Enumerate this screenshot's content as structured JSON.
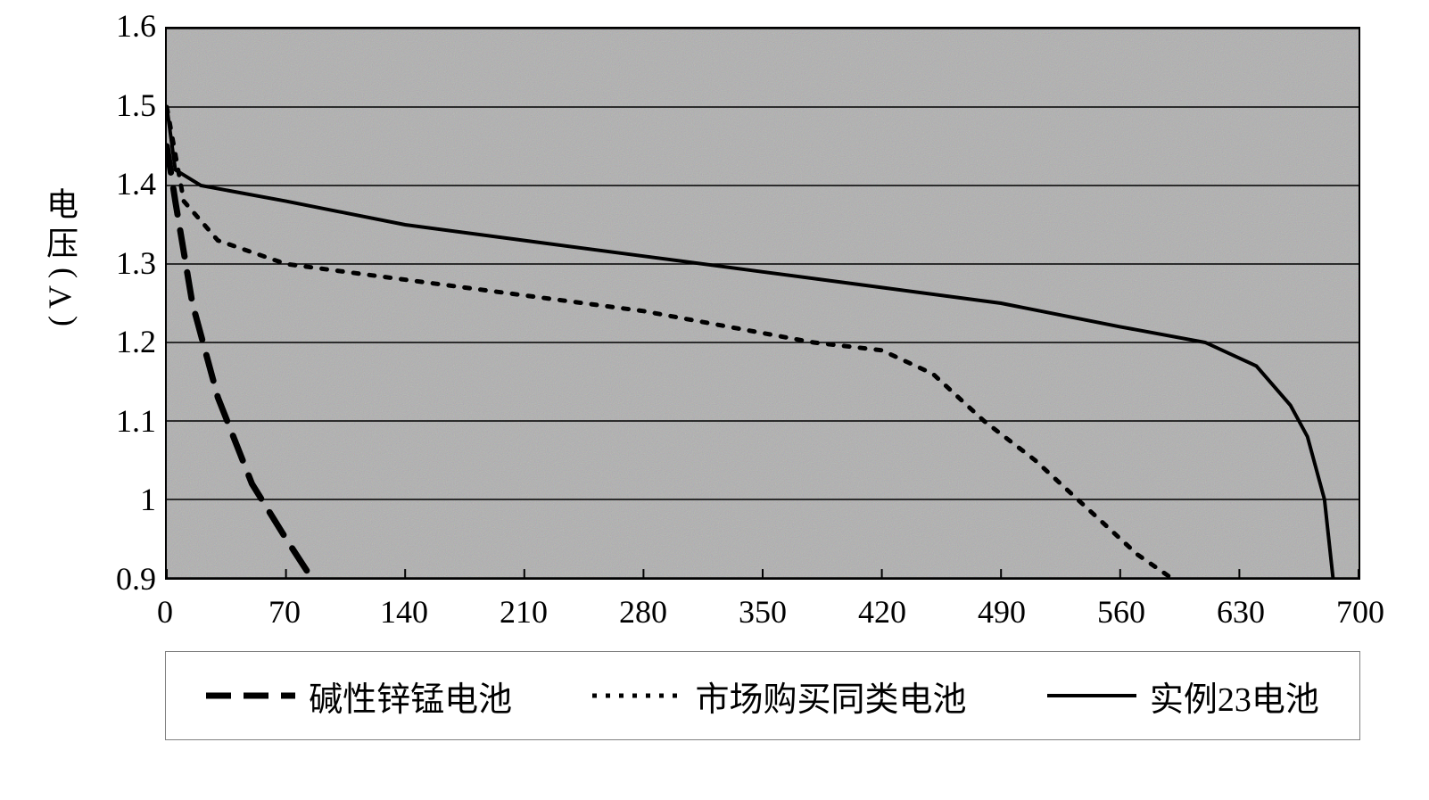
{
  "chart": {
    "type": "line",
    "ylabel": "电压",
    "yunit": "(V)",
    "label_fontsize": 36,
    "tick_fontsize": 36,
    "background_color": "#b0b0b0",
    "grid_color": "#000000",
    "border_color": "#000000",
    "xlim": [
      0,
      700
    ],
    "ylim": [
      0.9,
      1.6
    ],
    "xtick_step": 70,
    "ytick_step": 0.1,
    "xticks": [
      0,
      70,
      140,
      210,
      280,
      350,
      420,
      490,
      560,
      630,
      700
    ],
    "yticks": [
      0.9,
      1.0,
      1.1,
      1.2,
      1.3,
      1.4,
      1.5,
      1.6
    ],
    "ytick_labels": [
      "0.9",
      "1",
      "1.1",
      "1.2",
      "1.3",
      "1.4",
      "1.5",
      "1.6"
    ],
    "legend_border_color": "#808080",
    "legend_fontsize": 38,
    "series": [
      {
        "name": "碱性锌锰电池",
        "color": "#000000",
        "line_style": "long-dash",
        "line_width": 7,
        "data": [
          {
            "x": 0,
            "y": 1.45
          },
          {
            "x": 5,
            "y": 1.38
          },
          {
            "x": 15,
            "y": 1.25
          },
          {
            "x": 30,
            "y": 1.13
          },
          {
            "x": 50,
            "y": 1.02
          },
          {
            "x": 70,
            "y": 0.95
          },
          {
            "x": 85,
            "y": 0.9
          }
        ]
      },
      {
        "name": "市场购买同类电池",
        "color": "#000000",
        "line_style": "dot",
        "line_width": 5,
        "data": [
          {
            "x": 0,
            "y": 1.5
          },
          {
            "x": 10,
            "y": 1.38
          },
          {
            "x": 30,
            "y": 1.33
          },
          {
            "x": 70,
            "y": 1.3
          },
          {
            "x": 140,
            "y": 1.28
          },
          {
            "x": 210,
            "y": 1.26
          },
          {
            "x": 280,
            "y": 1.24
          },
          {
            "x": 330,
            "y": 1.22
          },
          {
            "x": 380,
            "y": 1.2
          },
          {
            "x": 420,
            "y": 1.19
          },
          {
            "x": 450,
            "y": 1.16
          },
          {
            "x": 480,
            "y": 1.1
          },
          {
            "x": 510,
            "y": 1.05
          },
          {
            "x": 540,
            "y": 0.99
          },
          {
            "x": 570,
            "y": 0.93
          },
          {
            "x": 590,
            "y": 0.9
          }
        ]
      },
      {
        "name": "实例23电池",
        "color": "#000000",
        "line_style": "solid",
        "line_width": 4,
        "data": [
          {
            "x": 0,
            "y": 1.5
          },
          {
            "x": 5,
            "y": 1.42
          },
          {
            "x": 20,
            "y": 1.4
          },
          {
            "x": 70,
            "y": 1.38
          },
          {
            "x": 140,
            "y": 1.35
          },
          {
            "x": 210,
            "y": 1.33
          },
          {
            "x": 280,
            "y": 1.31
          },
          {
            "x": 350,
            "y": 1.29
          },
          {
            "x": 420,
            "y": 1.27
          },
          {
            "x": 490,
            "y": 1.25
          },
          {
            "x": 560,
            "y": 1.22
          },
          {
            "x": 610,
            "y": 1.2
          },
          {
            "x": 640,
            "y": 1.17
          },
          {
            "x": 660,
            "y": 1.12
          },
          {
            "x": 670,
            "y": 1.08
          },
          {
            "x": 680,
            "y": 1.0
          },
          {
            "x": 685,
            "y": 0.9
          }
        ]
      }
    ]
  }
}
